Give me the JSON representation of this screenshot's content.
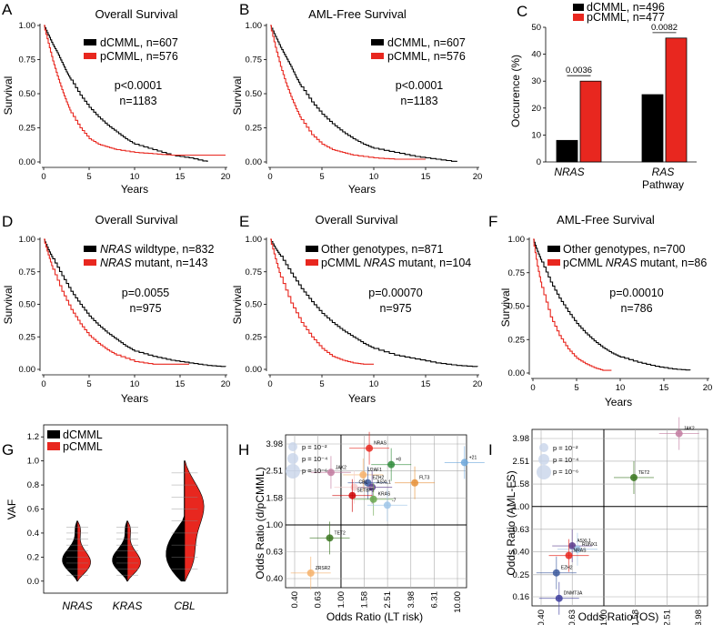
{
  "colors": {
    "d": "#000000",
    "p": "#e8271f",
    "grid": "#999999"
  },
  "panels": {
    "A": {
      "letter": "A",
      "title": "Overall Survival",
      "ylabel": "Survival",
      "xlabel": "Years",
      "legend": [
        "dCMML, n=607",
        "pCMML, n=576"
      ],
      "stat": [
        "p<0.0001",
        "n=1183"
      ]
    },
    "B": {
      "letter": "B",
      "title": "AML-Free Survival",
      "ylabel": "Survival",
      "xlabel": "Years",
      "legend": [
        "dCMML, n=607",
        "pCMML, n=576"
      ],
      "stat": [
        "p<0.0001",
        "n=1183"
      ]
    },
    "C": {
      "letter": "C",
      "ylabel": "Occurence (%)",
      "legend": [
        "dCMML, n=496",
        "pCMML, n=477"
      ],
      "pvals": [
        "0.0036",
        "0.0082"
      ],
      "cat1": "NRAS",
      "cat2a": "RAS",
      "cat2b": "Pathway"
    },
    "D": {
      "letter": "D",
      "title": "Overall Survival",
      "ylabel": "Survival",
      "xlabel": "Years",
      "legend": [
        [
          "NRAS",
          " wildtype, n=832"
        ],
        [
          "NRAS",
          " mutant, n=143"
        ]
      ],
      "stat": [
        "p=0.0055",
        "n=975"
      ]
    },
    "E": {
      "letter": "E",
      "title": "Overall Survival",
      "ylabel": "Survival",
      "xlabel": "Years",
      "legend": [
        [
          "",
          "Other genotypes, n=871"
        ],
        [
          "pCMML ",
          "NRAS",
          " mutant, n=104"
        ]
      ],
      "stat": [
        "p=0.00070",
        "n=975"
      ]
    },
    "F": {
      "letter": "F",
      "title": "AML-Free Survival",
      "ylabel": "Survival",
      "xlabel": "Years",
      "legend": [
        [
          "",
          "Other genotypes, n=700"
        ],
        [
          "pCMML ",
          "NRAS",
          " mutant, n=86"
        ]
      ],
      "stat": [
        "p=0.00010",
        "n=786"
      ]
    },
    "G": {
      "letter": "G",
      "ylabel": "VAF",
      "legend": [
        "dCMML",
        "pCMML"
      ]
    },
    "H": {
      "letter": "H",
      "ylabel": "Odds Ratio (d/pCMML)",
      "xlabel": "Odds Ratio (LT risk)",
      "plegend": [
        "p = 10⁻²",
        "p = 10⁻⁴",
        "p = 10⁻⁶"
      ]
    },
    "I": {
      "letter": "I",
      "ylabel": "Odds Ratio (AML-FS)",
      "xlabel": "Odds Ratio (OS)",
      "plegend": [
        "p = 10⁻²",
        "p = 10⁻⁴",
        "p = 10⁻⁶"
      ]
    }
  },
  "chart_data": [
    {
      "panel": "A",
      "type": "line",
      "title": "Overall Survival",
      "xlabel": "Years",
      "ylabel": "Survival",
      "xlim": [
        0,
        20
      ],
      "ylim": [
        0,
        1
      ],
      "xticks": [
        0,
        5,
        10,
        15,
        20
      ],
      "yticks": [
        "0.00",
        "0.25",
        "0.50",
        "0.75",
        "1.00"
      ],
      "series": [
        {
          "name": "dCMML, n=607",
          "color": "#000000",
          "x": [
            0,
            0.5,
            1,
            1.5,
            2,
            2.5,
            3,
            4,
            5,
            6,
            7,
            8,
            9,
            10,
            12,
            14,
            16,
            18
          ],
          "y": [
            1,
            0.93,
            0.86,
            0.8,
            0.73,
            0.66,
            0.6,
            0.49,
            0.4,
            0.33,
            0.27,
            0.22,
            0.17,
            0.13,
            0.09,
            0.05,
            0.03,
            0.0
          ]
        },
        {
          "name": "pCMML, n=576",
          "color": "#e8271f",
          "x": [
            0,
            0.5,
            1,
            1.5,
            2,
            2.5,
            3,
            4,
            5,
            6,
            7,
            8,
            10,
            12,
            14,
            20
          ],
          "y": [
            1,
            0.87,
            0.74,
            0.63,
            0.53,
            0.44,
            0.36,
            0.25,
            0.17,
            0.13,
            0.11,
            0.09,
            0.07,
            0.06,
            0.05,
            0.05
          ]
        }
      ]
    },
    {
      "panel": "B",
      "type": "line",
      "title": "AML-Free Survival",
      "xlabel": "Years",
      "ylabel": "Survival",
      "xlim": [
        0,
        20
      ],
      "ylim": [
        0,
        1
      ],
      "xticks": [
        0,
        5,
        10,
        15,
        20
      ],
      "yticks": [
        "0.00",
        "0.25",
        "0.50",
        "0.75",
        "1.00"
      ],
      "series": [
        {
          "name": "dCMML, n=607",
          "color": "#000000",
          "x": [
            0,
            0.5,
            1,
            1.5,
            2,
            2.5,
            3,
            4,
            5,
            6,
            7,
            8,
            9,
            10,
            12,
            14,
            16,
            18
          ],
          "y": [
            1,
            0.92,
            0.84,
            0.77,
            0.7,
            0.62,
            0.55,
            0.44,
            0.35,
            0.28,
            0.22,
            0.17,
            0.13,
            0.1,
            0.07,
            0.04,
            0.02,
            0.0
          ]
        },
        {
          "name": "pCMML, n=576",
          "color": "#e8271f",
          "x": [
            0,
            0.5,
            1,
            1.5,
            2,
            2.5,
            3,
            4,
            5,
            6,
            7,
            8,
            10,
            12,
            15
          ],
          "y": [
            1,
            0.84,
            0.7,
            0.58,
            0.48,
            0.39,
            0.31,
            0.2,
            0.13,
            0.09,
            0.07,
            0.05,
            0.03,
            0.02,
            0.02
          ]
        }
      ]
    },
    {
      "panel": "C",
      "type": "bar",
      "ylabel": "Occurence (%)",
      "ylim": [
        0,
        50
      ],
      "yticks": [
        0,
        10,
        20,
        30,
        40,
        50
      ],
      "categories": [
        "NRAS",
        "RAS Pathway"
      ],
      "series": [
        {
          "name": "dCMML, n=496",
          "color": "#000000",
          "values": [
            8,
            25
          ]
        },
        {
          "name": "pCMML, n=477",
          "color": "#e8271f",
          "values": [
            30,
            46
          ]
        }
      ],
      "annotations": [
        "0.0036",
        "0.0082"
      ]
    },
    {
      "panel": "D",
      "type": "line",
      "title": "Overall Survival",
      "xlabel": "Years",
      "ylabel": "Survival",
      "xlim": [
        0,
        20
      ],
      "ylim": [
        0,
        1
      ],
      "xticks": [
        0,
        5,
        10,
        15,
        20
      ],
      "yticks": [
        "0.00",
        "0.25",
        "0.50",
        "0.75",
        "1.00"
      ],
      "series": [
        {
          "name": "NRAS wildtype, n=832",
          "color": "#000000",
          "x": [
            0,
            0.5,
            1,
            2,
            3,
            4,
            5,
            6,
            7,
            8,
            9,
            10,
            12,
            14,
            16,
            18,
            20
          ],
          "y": [
            1,
            0.92,
            0.85,
            0.72,
            0.6,
            0.5,
            0.41,
            0.34,
            0.28,
            0.23,
            0.18,
            0.14,
            0.1,
            0.07,
            0.05,
            0.03,
            0.02
          ]
        },
        {
          "name": "NRAS mutant, n=143",
          "color": "#e8271f",
          "x": [
            0,
            0.5,
            1,
            2,
            3,
            4,
            5,
            6,
            7,
            8,
            10,
            12,
            16
          ],
          "y": [
            1,
            0.88,
            0.77,
            0.6,
            0.46,
            0.35,
            0.26,
            0.2,
            0.15,
            0.11,
            0.06,
            0.04,
            0.04
          ]
        }
      ]
    },
    {
      "panel": "E",
      "type": "line",
      "title": "Overall Survival",
      "xlabel": "Years",
      "ylabel": "Survival",
      "xlim": [
        0,
        20
      ],
      "ylim": [
        0,
        1
      ],
      "xticks": [
        0,
        5,
        10,
        15,
        20
      ],
      "yticks": [
        "0.00",
        "0.25",
        "0.50",
        "0.75",
        "1.00"
      ],
      "series": [
        {
          "name": "Other genotypes, n=871",
          "color": "#000000",
          "x": [
            0,
            0.5,
            1,
            2,
            3,
            4,
            5,
            6,
            7,
            8,
            9,
            10,
            12,
            14,
            16,
            18,
            20
          ],
          "y": [
            1,
            0.93,
            0.87,
            0.74,
            0.62,
            0.52,
            0.43,
            0.36,
            0.3,
            0.25,
            0.2,
            0.16,
            0.11,
            0.08,
            0.05,
            0.03,
            0.02
          ]
        },
        {
          "name": "pCMML NRAS mutant, n=104",
          "color": "#e8271f",
          "x": [
            0,
            0.5,
            1,
            2,
            3,
            4,
            5,
            6,
            7,
            8,
            9,
            10
          ],
          "y": [
            1,
            0.85,
            0.71,
            0.51,
            0.36,
            0.25,
            0.16,
            0.1,
            0.07,
            0.05,
            0.04,
            0.04
          ]
        }
      ]
    },
    {
      "panel": "F",
      "type": "line",
      "title": "AML-Free Survival",
      "xlabel": "Years",
      "ylabel": "Survival",
      "xlim": [
        0,
        20
      ],
      "ylim": [
        0,
        1
      ],
      "xticks": [
        0,
        5,
        10,
        15,
        20
      ],
      "yticks": [
        "0.00",
        "0.25",
        "0.50",
        "0.75",
        "1.00"
      ],
      "series": [
        {
          "name": "Other genotypes, n=700",
          "color": "#000000",
          "x": [
            0,
            0.5,
            1,
            2,
            3,
            4,
            5,
            6,
            7,
            8,
            9,
            10,
            12,
            14,
            16,
            18
          ],
          "y": [
            1,
            0.91,
            0.83,
            0.68,
            0.56,
            0.46,
            0.37,
            0.3,
            0.24,
            0.19,
            0.15,
            0.12,
            0.08,
            0.05,
            0.03,
            0.02
          ]
        },
        {
          "name": "pCMML NRAS mutant, n=86",
          "color": "#e8271f",
          "x": [
            0,
            0.5,
            1,
            2,
            3,
            4,
            5,
            6,
            7,
            8,
            9
          ],
          "y": [
            1,
            0.8,
            0.64,
            0.42,
            0.28,
            0.18,
            0.11,
            0.07,
            0.04,
            0.02,
            0.02
          ]
        }
      ]
    },
    {
      "panel": "G",
      "type": "violin",
      "ylabel": "VAF",
      "ylim": [
        -0.1,
        1.3
      ],
      "yticks": [
        "0.0",
        "0.2",
        "0.4",
        "0.6",
        "0.8",
        "1.0",
        "1.2"
      ],
      "categories": [
        "NRAS",
        "KRAS",
        "CBL"
      ],
      "series": [
        {
          "name": "dCMML",
          "color": "#000000"
        },
        {
          "name": "pCMML",
          "color": "#e8271f"
        }
      ],
      "ranges": [
        [
          0,
          0.5
        ],
        [
          0,
          0.5
        ],
        [
          0,
          1.0
        ]
      ]
    },
    {
      "panel": "H",
      "type": "scatter",
      "xlabel": "Odds Ratio (LT risk)",
      "ylabel": "Odds Ratio (d/pCMML)",
      "log": true,
      "xticks": [
        "0.40",
        "0.63",
        "1.00",
        "1.58",
        "2.51",
        "3.98",
        "6.31",
        "10.00"
      ],
      "yticks": [
        "0.40",
        "0.63",
        "1.00",
        "1.58",
        "2.51",
        "3.98"
      ],
      "points": [
        {
          "label": "NRAS",
          "x": 1.75,
          "y": 3.7,
          "color": "#e8271f"
        },
        {
          "label": "+8",
          "x": 2.7,
          "y": 2.8,
          "color": "#2e8b3a"
        },
        {
          "label": "+21",
          "x": 11.5,
          "y": 2.9,
          "color": "#6fa8dc"
        },
        {
          "label": "JAK2",
          "x": 0.82,
          "y": 2.45,
          "color": "#c27ba0"
        },
        {
          "label": "U2AF1",
          "x": 1.55,
          "y": 2.35,
          "color": "#f6b26b"
        },
        {
          "label": "EZH2",
          "x": 1.7,
          "y": 2.05,
          "color": "#3d5a9e"
        },
        {
          "label": "ASXL1",
          "x": 1.85,
          "y": 1.9,
          "color": "#5b3b8c"
        },
        {
          "label": "CBL",
          "x": 1.3,
          "y": 1.9,
          "color": "#f4cccc"
        },
        {
          "label": "FLT3",
          "x": 4.3,
          "y": 2.05,
          "color": "#e69138"
        },
        {
          "label": "SETBP1",
          "x": 1.25,
          "y": 1.65,
          "color": "#cc0000"
        },
        {
          "label": "KRAS",
          "x": 1.9,
          "y": 1.55,
          "color": "#6aa84f"
        },
        {
          "label": "-7",
          "x": 2.5,
          "y": 1.4,
          "color": "#9fc5e8"
        },
        {
          "label": "TET2",
          "x": 0.8,
          "y": 0.8,
          "color": "#38761d"
        },
        {
          "label": "ZRSR2",
          "x": 0.55,
          "y": 0.44,
          "color": "#f6b26b"
        }
      ]
    },
    {
      "panel": "I",
      "type": "scatter",
      "xlabel": "Odds Ratio (OS)",
      "ylabel": "Odds Ratio (AML-FS)",
      "log": true,
      "xticks": [
        "0.40",
        "0.63",
        "1.00",
        "1.58",
        "2.51",
        "3.98"
      ],
      "yticks": [
        "0.16",
        "0.25",
        "0.40",
        "0.63",
        "1.00",
        "1.58",
        "2.51",
        "3.98"
      ],
      "points": [
        {
          "label": "JAK2",
          "x": 3.0,
          "y": 4.4,
          "color": "#c27ba0"
        },
        {
          "label": "TET2",
          "x": 1.55,
          "y": 1.8,
          "color": "#38761d"
        },
        {
          "label": "ASXL1",
          "x": 0.63,
          "y": 0.45,
          "color": "#5b3b8c"
        },
        {
          "label": "RUNX1",
          "x": 0.68,
          "y": 0.42,
          "color": "#9fc5e8"
        },
        {
          "label": "NRAS",
          "x": 0.6,
          "y": 0.37,
          "color": "#e8271f"
        },
        {
          "label": "EZH2",
          "x": 0.5,
          "y": 0.26,
          "color": "#3d5a9e"
        },
        {
          "label": "DNMT3A",
          "x": 0.52,
          "y": 0.155,
          "color": "#3d3d9e"
        }
      ]
    }
  ]
}
